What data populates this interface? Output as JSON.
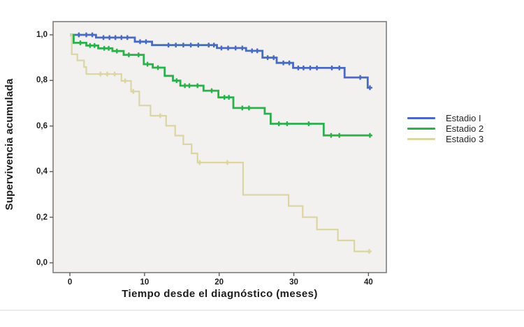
{
  "chart_data": {
    "type": "line",
    "subtype": "kaplan-meier-step-survival",
    "title": "",
    "xlabel": "Tiempo desde el diagnóstico (meses)",
    "ylabel": "Supervivencia acumulada",
    "x_ticks": [
      0,
      10,
      20,
      30,
      40
    ],
    "x_tick_labels": [
      "0",
      "10",
      "20",
      "30",
      "40"
    ],
    "y_ticks": [
      0.0,
      0.2,
      0.4,
      0.6,
      0.8,
      1.0
    ],
    "y_tick_labels": [
      "0,0",
      "0,2",
      "0,4",
      "0,6",
      "0,8",
      "1,0"
    ],
    "xlim": [
      -2.25,
      42.4
    ],
    "ylim": [
      -0.043,
      1.058
    ],
    "grid": false,
    "legend_position": "right",
    "plot_bg": "#f2f1ef",
    "border_color": "#7e7e7e",
    "tick_color": "#5a5a5a",
    "series": [
      {
        "name": "Estadio I",
        "color": "#4a6abe",
        "stroke_width": 2.8,
        "points": [
          [
            0,
            1.0
          ],
          [
            3.5,
            0.988
          ],
          [
            8.7,
            0.97
          ],
          [
            11,
            0.955
          ],
          [
            19.7,
            0.942
          ],
          [
            23.6,
            0.93
          ],
          [
            25.8,
            0.9
          ],
          [
            27.7,
            0.877
          ],
          [
            29.9,
            0.855
          ],
          [
            36.8,
            0.813
          ],
          [
            39.9,
            0.768
          ]
        ],
        "end_t": 40.3,
        "censors": [
          [
            1.2,
            1.0
          ],
          [
            2.2,
            1.0
          ],
          [
            3.0,
            1.0
          ],
          [
            4.5,
            0.988
          ],
          [
            5.3,
            0.988
          ],
          [
            6.1,
            0.988
          ],
          [
            6.9,
            0.988
          ],
          [
            7.7,
            0.988
          ],
          [
            9.4,
            0.97
          ],
          [
            10.2,
            0.97
          ],
          [
            13.2,
            0.955
          ],
          [
            14.2,
            0.955
          ],
          [
            15.2,
            0.955
          ],
          [
            16.2,
            0.955
          ],
          [
            17.2,
            0.955
          ],
          [
            18.6,
            0.955
          ],
          [
            19.3,
            0.955
          ],
          [
            20.3,
            0.942
          ],
          [
            21.2,
            0.942
          ],
          [
            22.2,
            0.942
          ],
          [
            23.1,
            0.942
          ],
          [
            24.4,
            0.93
          ],
          [
            25.1,
            0.93
          ],
          [
            26.5,
            0.9
          ],
          [
            27.3,
            0.9
          ],
          [
            28.6,
            0.877
          ],
          [
            29.4,
            0.877
          ],
          [
            30.6,
            0.855
          ],
          [
            31.3,
            0.855
          ],
          [
            32.2,
            0.855
          ],
          [
            33.1,
            0.855
          ],
          [
            35.1,
            0.855
          ],
          [
            36.1,
            0.855
          ],
          [
            38.9,
            0.813
          ],
          [
            40.2,
            0.768
          ]
        ]
      },
      {
        "name": "Estadio 2",
        "color": "#2eaf4c",
        "stroke_width": 2.8,
        "points": [
          [
            0,
            1.0
          ],
          [
            0.5,
            0.965
          ],
          [
            2.2,
            0.953
          ],
          [
            3.8,
            0.941
          ],
          [
            5.7,
            0.929
          ],
          [
            7.2,
            0.912
          ],
          [
            9.9,
            0.871
          ],
          [
            11.1,
            0.856
          ],
          [
            12.7,
            0.82
          ],
          [
            13.8,
            0.799
          ],
          [
            14.8,
            0.777
          ],
          [
            17.9,
            0.755
          ],
          [
            19.9,
            0.726
          ],
          [
            21.9,
            0.679
          ],
          [
            26.1,
            0.654
          ],
          [
            26.9,
            0.61
          ],
          [
            34.0,
            0.559
          ]
        ],
        "end_t": 40.4,
        "censors": [
          [
            1.4,
            0.965
          ],
          [
            2.7,
            0.953
          ],
          [
            3.3,
            0.953
          ],
          [
            4.6,
            0.941
          ],
          [
            5.2,
            0.941
          ],
          [
            6.3,
            0.929
          ],
          [
            7.9,
            0.912
          ],
          [
            9.2,
            0.912
          ],
          [
            10.4,
            0.871
          ],
          [
            11.8,
            0.856
          ],
          [
            14.3,
            0.799
          ],
          [
            15.4,
            0.777
          ],
          [
            16.0,
            0.777
          ],
          [
            17.1,
            0.777
          ],
          [
            19.0,
            0.755
          ],
          [
            20.7,
            0.726
          ],
          [
            21.3,
            0.726
          ],
          [
            23.1,
            0.679
          ],
          [
            24.0,
            0.679
          ],
          [
            28.0,
            0.61
          ],
          [
            29.1,
            0.61
          ],
          [
            32.0,
            0.61
          ],
          [
            35.0,
            0.559
          ],
          [
            36.1,
            0.559
          ],
          [
            40.2,
            0.559
          ]
        ]
      },
      {
        "name": "Estadio 3",
        "color": "#dbd5a4",
        "stroke_width": 2.2,
        "points": [
          [
            0,
            1.0
          ],
          [
            0.25,
            0.915
          ],
          [
            1.0,
            0.888
          ],
          [
            1.9,
            0.859
          ],
          [
            2.2,
            0.828
          ],
          [
            6.9,
            0.798
          ],
          [
            8.2,
            0.752
          ],
          [
            9.3,
            0.69
          ],
          [
            10.8,
            0.645
          ],
          [
            12.9,
            0.601
          ],
          [
            14.1,
            0.558
          ],
          [
            15.2,
            0.52
          ],
          [
            16.3,
            0.48
          ],
          [
            17.1,
            0.44
          ],
          [
            23.2,
            0.298
          ],
          [
            29.3,
            0.249
          ],
          [
            31.2,
            0.2
          ],
          [
            33.1,
            0.146
          ],
          [
            35.9,
            0.098
          ],
          [
            38.1,
            0.05
          ]
        ],
        "end_t": 40.2,
        "censors": [
          [
            4.1,
            0.828
          ],
          [
            5.0,
            0.828
          ],
          [
            6.0,
            0.828
          ],
          [
            7.4,
            0.798
          ],
          [
            8.5,
            0.752
          ],
          [
            12.1,
            0.645
          ],
          [
            17.4,
            0.44
          ],
          [
            21.1,
            0.44
          ],
          [
            40.1,
            0.05
          ]
        ]
      }
    ]
  }
}
